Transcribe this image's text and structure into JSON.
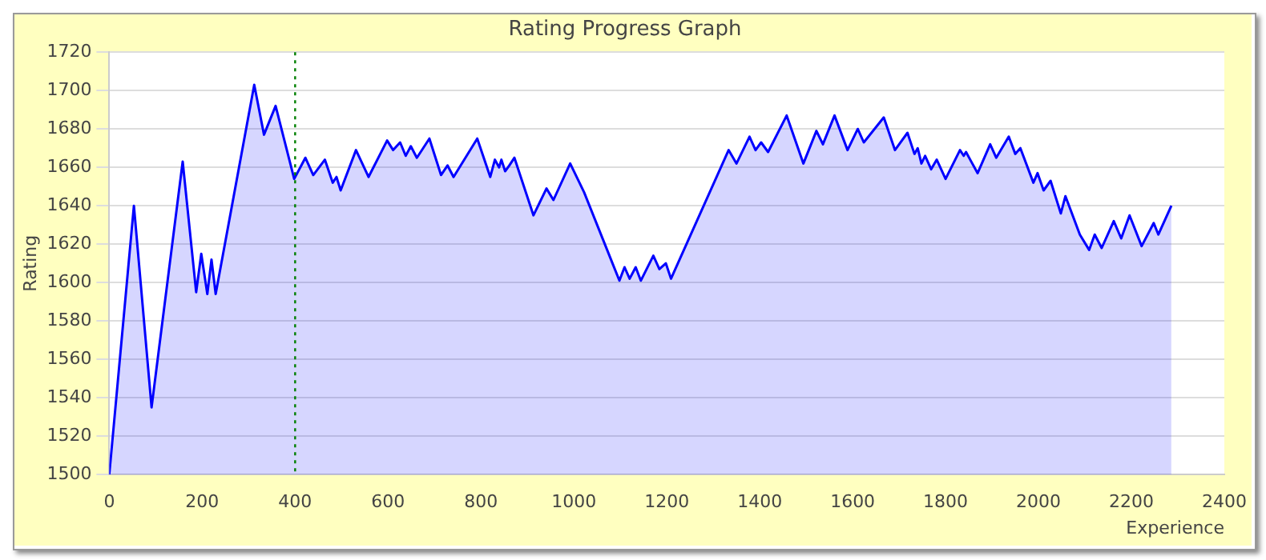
{
  "chart_data": {
    "type": "area",
    "title": "Rating Progress Graph",
    "xlabel": "Experience",
    "ylabel": "Rating",
    "x": [
      0,
      53,
      91,
      158,
      187,
      198,
      211,
      220,
      229,
      312,
      333,
      358,
      398,
      422,
      439,
      464,
      481,
      489,
      498,
      531,
      558,
      598,
      611,
      626,
      638,
      649,
      662,
      689,
      714,
      728,
      741,
      792,
      820,
      830,
      839,
      844,
      852,
      861,
      872,
      913,
      941,
      956,
      992,
      1022,
      1098,
      1109,
      1120,
      1133,
      1144,
      1171,
      1184,
      1198,
      1209,
      1333,
      1350,
      1378,
      1391,
      1403,
      1418,
      1458,
      1494,
      1522,
      1536,
      1561,
      1589,
      1611,
      1624,
      1667,
      1691,
      1718,
      1733,
      1740,
      1748,
      1756,
      1769,
      1781,
      1800,
      1831,
      1839,
      1844,
      1853,
      1869,
      1896,
      1909,
      1936,
      1950,
      1961,
      1989,
      1998,
      2011,
      2026,
      2048,
      2058,
      2089,
      2109,
      2121,
      2136,
      2162,
      2178,
      2196,
      2222,
      2248,
      2258,
      2286
    ],
    "series": [
      {
        "color": "#0000ff",
        "values": [
          1500,
          1640,
          1535,
          1663,
          1595,
          1615,
          1594,
          1612,
          1594,
          1703,
          1677,
          1692,
          1654,
          1665,
          1656,
          1664,
          1652,
          1655,
          1648,
          1669,
          1655,
          1674,
          1669,
          1673,
          1666,
          1671,
          1665,
          1675,
          1656,
          1661,
          1655,
          1675,
          1655,
          1664,
          1660,
          1664,
          1658,
          1661,
          1665,
          1635,
          1649,
          1643,
          1662,
          1647,
          1601,
          1608,
          1602,
          1608,
          1601,
          1614,
          1607,
          1610,
          1602,
          1669,
          1662,
          1676,
          1669,
          1673,
          1668,
          1687,
          1662,
          1679,
          1672,
          1687,
          1669,
          1680,
          1673,
          1686,
          1669,
          1678,
          1667,
          1670,
          1662,
          1666,
          1659,
          1664,
          1654,
          1669,
          1666,
          1668,
          1664,
          1657,
          1672,
          1665,
          1676,
          1667,
          1670,
          1652,
          1657,
          1648,
          1653,
          1636,
          1645,
          1625,
          1617,
          1625,
          1618,
          1632,
          1623,
          1635,
          1619,
          1631,
          1625,
          1640
        ]
      }
    ],
    "xlim": [
      0,
      2400
    ],
    "xticks": [
      0,
      200,
      400,
      600,
      800,
      1000,
      1200,
      1400,
      1600,
      1800,
      2000,
      2200,
      2400
    ],
    "ylim": [
      1500,
      1720
    ],
    "yticks": [
      1500,
      1520,
      1540,
      1560,
      1580,
      1600,
      1620,
      1640,
      1660,
      1680,
      1700,
      1720
    ],
    "grid": "y",
    "ref_lines": [
      {
        "axis": "x",
        "value": 400,
        "color": "#008000",
        "line_style": "dotted"
      }
    ]
  }
}
